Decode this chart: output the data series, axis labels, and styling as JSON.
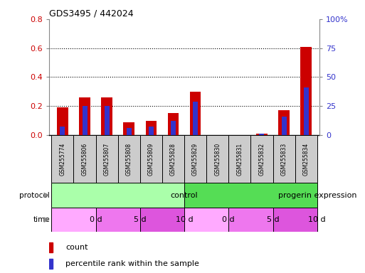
{
  "title": "GDS3495 / 442024",
  "samples": [
    "GSM255774",
    "GSM255806",
    "GSM255807",
    "GSM255808",
    "GSM255809",
    "GSM255828",
    "GSM255829",
    "GSM255830",
    "GSM255831",
    "GSM255832",
    "GSM255833",
    "GSM255834"
  ],
  "count_values": [
    0.19,
    0.26,
    0.26,
    0.09,
    0.1,
    0.15,
    0.3,
    0.0,
    0.0,
    0.01,
    0.17,
    0.61
  ],
  "percentile_values": [
    7.5,
    25,
    25,
    6.25,
    7.5,
    12.5,
    28.75,
    0.0,
    0.0,
    1.25,
    16.25,
    41.25
  ],
  "left_ylim": [
    0,
    0.8
  ],
  "right_ylim": [
    0,
    100
  ],
  "left_yticks": [
    0.0,
    0.2,
    0.4,
    0.6,
    0.8
  ],
  "right_yticks": [
    0,
    25,
    50,
    75,
    100
  ],
  "right_yticklabels": [
    "0",
    "25",
    "50",
    "75",
    "100%"
  ],
  "bar_color_red": "#cc0000",
  "bar_color_blue": "#3333cc",
  "protocol_groups": [
    {
      "label": "control",
      "start": 0,
      "end": 6,
      "color": "#aaffaa"
    },
    {
      "label": "progerin expression",
      "start": 6,
      "end": 12,
      "color": "#55dd55"
    }
  ],
  "time_groups": [
    {
      "label": "0 d",
      "start": 0,
      "end": 2,
      "color": "#ffaaff"
    },
    {
      "label": "5 d",
      "start": 2,
      "end": 4,
      "color": "#ee77ee"
    },
    {
      "label": "10 d",
      "start": 4,
      "end": 6,
      "color": "#dd55dd"
    },
    {
      "label": "0 d",
      "start": 6,
      "end": 8,
      "color": "#ffaaff"
    },
    {
      "label": "5 d",
      "start": 8,
      "end": 10,
      "color": "#ee77ee"
    },
    {
      "label": "10 d",
      "start": 10,
      "end": 12,
      "color": "#dd55dd"
    }
  ],
  "legend_count_label": "count",
  "legend_percentile_label": "percentile rank within the sample",
  "protocol_label": "protocol",
  "time_label": "time",
  "bar_width": 0.5,
  "sample_bg_color": "#cccccc",
  "grid_color": "black",
  "left_tick_color": "#cc0000",
  "right_tick_color": "#3333cc"
}
